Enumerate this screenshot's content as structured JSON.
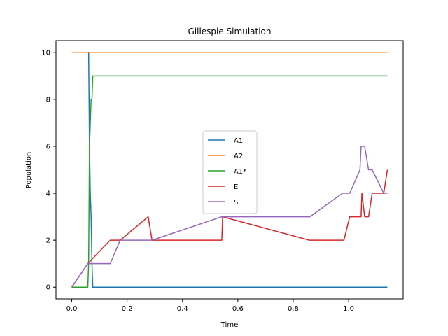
{
  "chart_data": {
    "type": "line",
    "title": "Gillespie Simulation",
    "xlabel": "Time",
    "ylabel": "Population",
    "xlim": [
      -0.057,
      1.197
    ],
    "ylim": [
      -0.5,
      10.5
    ],
    "xticks": [
      0.0,
      0.2,
      0.4,
      0.6,
      0.8,
      1.0
    ],
    "xtick_labels": [
      "0.0",
      "0.2",
      "0.4",
      "0.6",
      "0.8",
      "1.0"
    ],
    "yticks": [
      0,
      2,
      4,
      6,
      8,
      10
    ],
    "ytick_labels": [
      "0",
      "2",
      "4",
      "6",
      "8",
      "10"
    ],
    "grid": false,
    "legend_position": "center",
    "series": [
      {
        "name": "A1",
        "color": "#1f77b4",
        "x": [
          0.0,
          0.061,
          0.064,
          0.067,
          0.07,
          0.073,
          0.076,
          1.14
        ],
        "y": [
          10,
          10,
          6,
          4,
          3,
          1,
          0,
          0
        ]
      },
      {
        "name": "A2",
        "color": "#ff7f0e",
        "x": [
          0.0,
          1.14
        ],
        "y": [
          10,
          10
        ]
      },
      {
        "name": "A1*",
        "color": "#2ca02c",
        "x": [
          0.0,
          0.058,
          0.061,
          0.064,
          0.067,
          0.07,
          0.073,
          0.076,
          1.14
        ],
        "y": [
          0,
          0,
          1,
          6,
          7,
          8,
          8,
          9,
          9
        ]
      },
      {
        "name": "E",
        "color": "#d62728",
        "x": [
          0.0,
          0.058,
          0.139,
          0.175,
          0.276,
          0.29,
          0.542,
          0.545,
          0.858,
          0.983,
          1.004,
          1.045,
          1.048,
          1.058,
          1.072,
          1.085,
          1.127,
          1.14
        ],
        "y": [
          0,
          1,
          2,
          2,
          3,
          2,
          2,
          3,
          2,
          2,
          3,
          3,
          4,
          3,
          3,
          4,
          4,
          5
        ]
      },
      {
        "name": "S",
        "color": "#9467bd",
        "x": [
          0.0,
          0.058,
          0.069,
          0.139,
          0.175,
          0.29,
          0.542,
          0.86,
          0.978,
          1.004,
          1.041,
          1.045,
          1.058,
          1.072,
          1.085,
          1.127,
          1.14
        ],
        "y": [
          0,
          1,
          1,
          1,
          2,
          2,
          3,
          3,
          4,
          4,
          5,
          6,
          6,
          5,
          5,
          4,
          4
        ]
      }
    ]
  }
}
